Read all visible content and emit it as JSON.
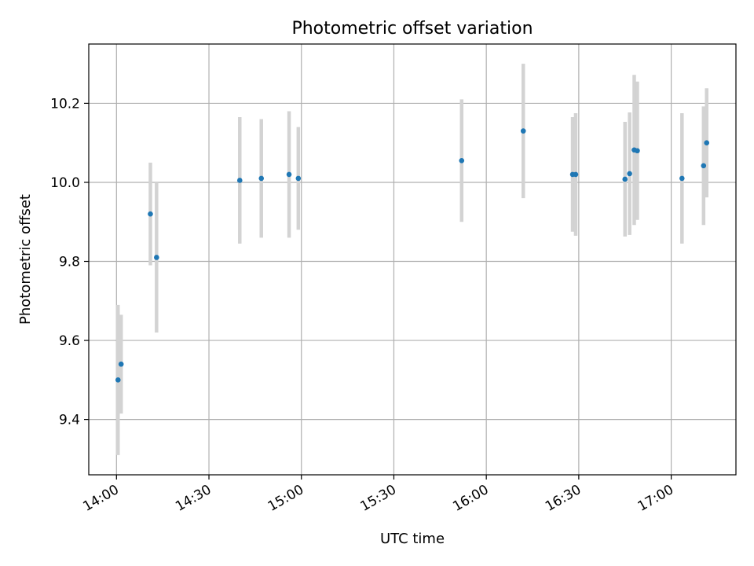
{
  "chart_data": {
    "type": "scatter",
    "title": "Photometric offset variation",
    "xlabel": "UTC time",
    "ylabel": "Photometric offset",
    "x_ticks": [
      "14:00",
      "14:30",
      "15:00",
      "15:30",
      "16:00",
      "16:30",
      "17:00"
    ],
    "y_ticks": [
      "9.4",
      "9.6",
      "9.8",
      "10.0",
      "10.2"
    ],
    "xlim": [
      "13:51",
      "17:21"
    ],
    "ylim": [
      9.26,
      10.35
    ],
    "grid": true,
    "colors": {
      "point": "#1f77b4",
      "errorbar": "#d3d3d3",
      "grid": "#b0b0b0"
    },
    "points": [
      {
        "x": "14:00:30",
        "y": 9.5,
        "yerr": 0.19
      },
      {
        "x": "14:01:30",
        "y": 9.54,
        "yerr": 0.125
      },
      {
        "x": "14:11:00",
        "y": 9.92,
        "yerr": 0.13
      },
      {
        "x": "14:13:00",
        "y": 9.81,
        "yerr": 0.19
      },
      {
        "x": "14:40:00",
        "y": 10.005,
        "yerr": 0.16
      },
      {
        "x": "14:47:00",
        "y": 10.01,
        "yerr": 0.15
      },
      {
        "x": "14:56:00",
        "y": 10.02,
        "yerr": 0.16
      },
      {
        "x": "14:59:00",
        "y": 10.01,
        "yerr": 0.13
      },
      {
        "x": "15:52:00",
        "y": 10.055,
        "yerr": 0.155
      },
      {
        "x": "16:12:00",
        "y": 10.13,
        "yerr": 0.17
      },
      {
        "x": "16:28:00",
        "y": 10.02,
        "yerr": 0.145
      },
      {
        "x": "16:29:00",
        "y": 10.02,
        "yerr": 0.155
      },
      {
        "x": "16:45:00",
        "y": 10.008,
        "yerr": 0.145
      },
      {
        "x": "16:46:30",
        "y": 10.022,
        "yerr": 0.155
      },
      {
        "x": "16:48:00",
        "y": 10.082,
        "yerr": 0.19
      },
      {
        "x": "16:49:00",
        "y": 10.08,
        "yerr": 0.175
      },
      {
        "x": "17:03:30",
        "y": 10.01,
        "yerr": 0.165
      },
      {
        "x": "17:10:30",
        "y": 10.042,
        "yerr": 0.15
      },
      {
        "x": "17:11:30",
        "y": 10.1,
        "yerr": 0.138
      }
    ]
  }
}
